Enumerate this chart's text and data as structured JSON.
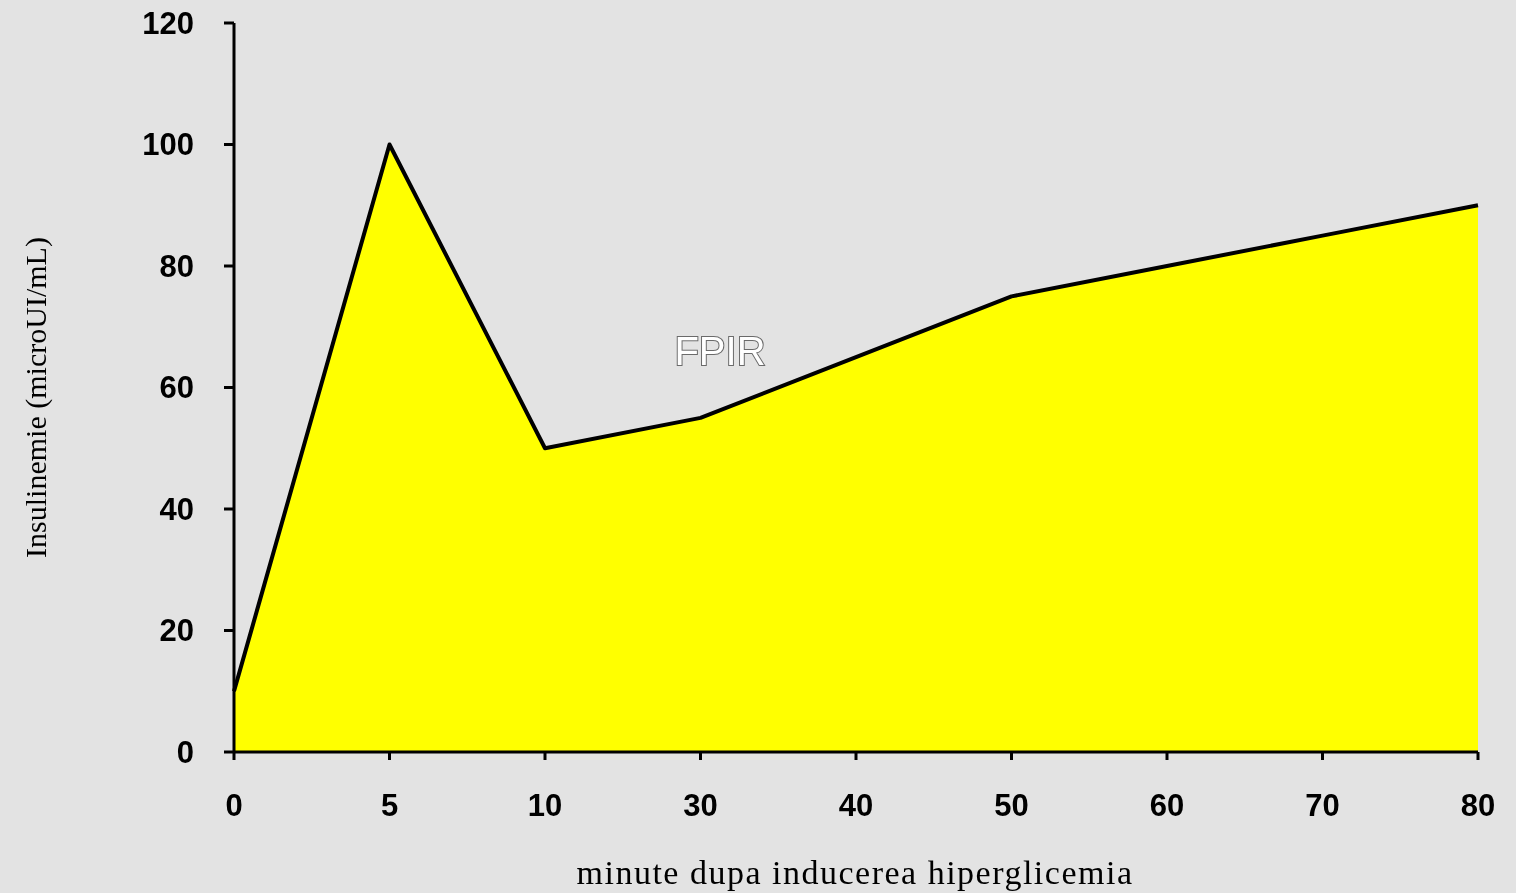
{
  "chart_data": {
    "type": "area",
    "xlabel": "minute dupa inducerea hiperglicemia",
    "ylabel": "Insulinemie (microUI/mL)",
    "categories": [
      "0",
      "5",
      "10",
      "30",
      "40",
      "50",
      "60",
      "70",
      "80"
    ],
    "series": [
      {
        "color": "#ffff00",
        "values": [
          10,
          100,
          50,
          55,
          65,
          75,
          80,
          85,
          90
        ]
      }
    ],
    "ylim": [
      0,
      120
    ],
    "yticks": [
      0,
      20,
      40,
      60,
      80,
      100,
      120
    ],
    "grid": false,
    "annotations": [
      "FPIR"
    ]
  }
}
